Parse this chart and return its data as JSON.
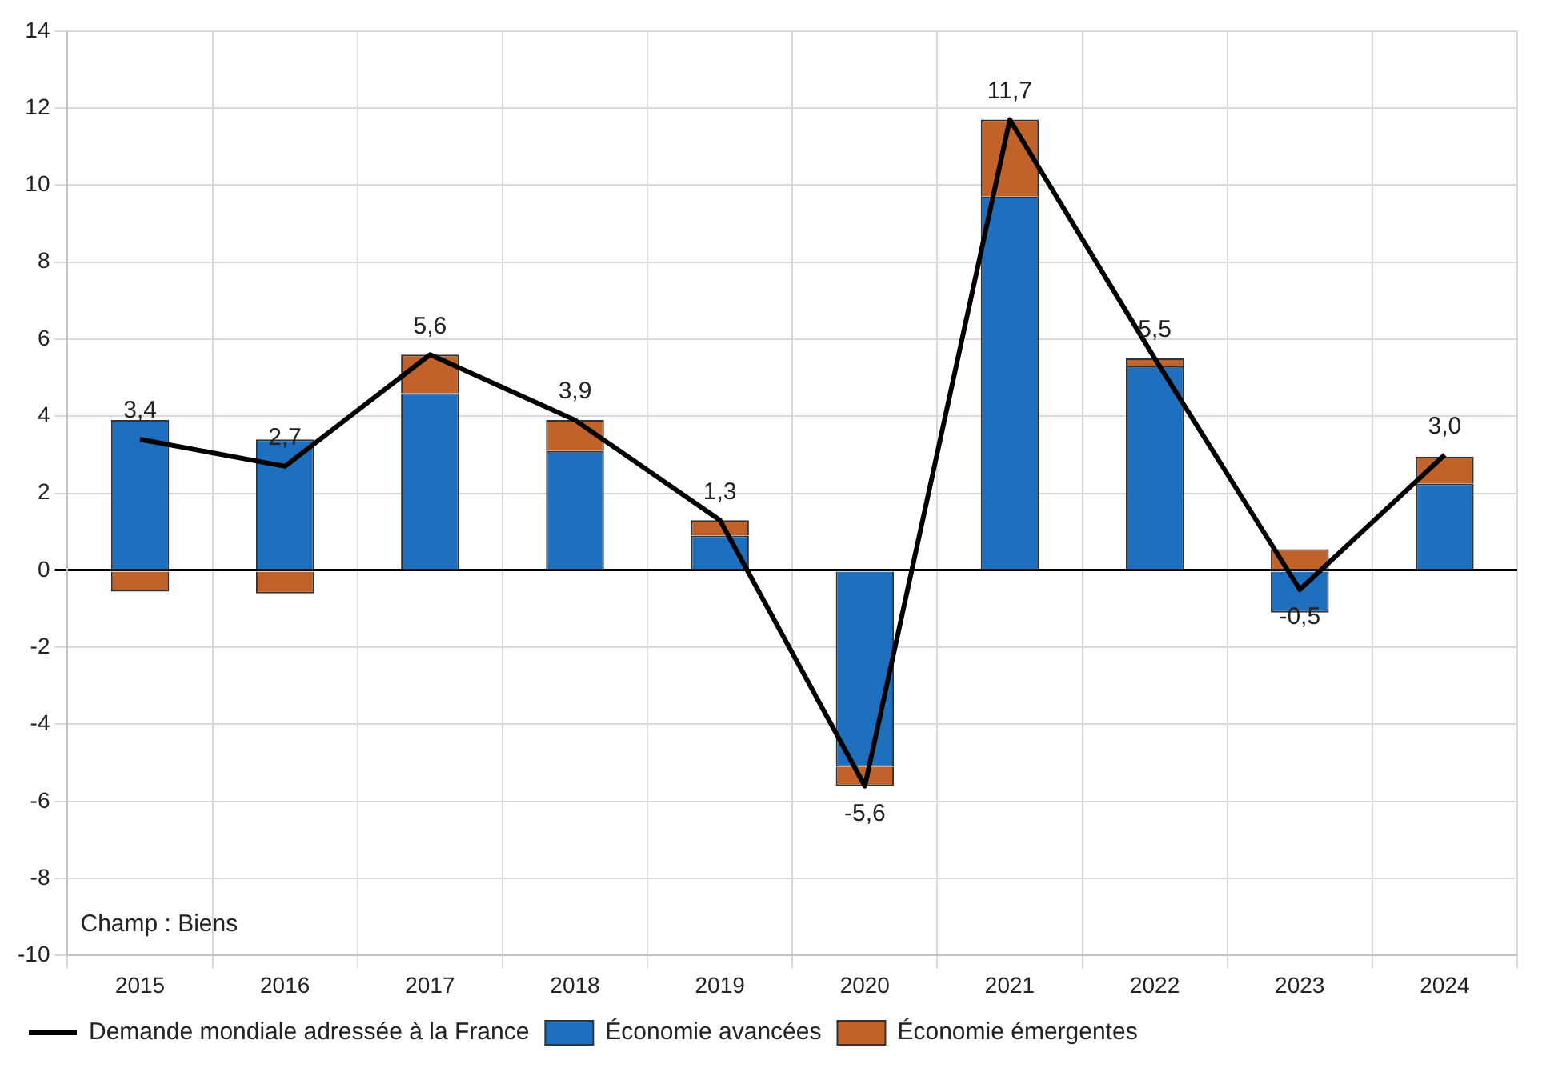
{
  "chart_data": {
    "type": "bar",
    "stacked": true,
    "categories": [
      "2015",
      "2016",
      "2017",
      "2018",
      "2019",
      "2020",
      "2021",
      "2022",
      "2023",
      "2024"
    ],
    "series": [
      {
        "name": "Économie avancées",
        "color": "#1f6fbf",
        "values": [
          3.9,
          3.4,
          4.6,
          3.1,
          0.9,
          -5.1,
          9.7,
          5.3,
          -1.1,
          2.25
        ]
      },
      {
        "name": "Économie émergentes",
        "color": "#c0622a",
        "values": [
          -0.55,
          -0.6,
          1.0,
          0.8,
          0.4,
          -0.5,
          2.0,
          0.2,
          0.55,
          0.7
        ]
      },
      {
        "name": "Demande mondiale adressée à la France",
        "type": "line",
        "color": "#000000",
        "values": [
          3.4,
          2.7,
          5.6,
          3.9,
          1.3,
          -5.6,
          11.7,
          5.5,
          -0.5,
          3.0
        ],
        "value_labels": [
          "3,4",
          "2,7",
          "5,6",
          "3,9",
          "1,3",
          "-5,6",
          "11,7",
          "5,5",
          "-0,5",
          "3,0"
        ]
      }
    ],
    "ylim": [
      -10,
      14
    ],
    "yticks": [
      -10,
      -8,
      -6,
      -4,
      -2,
      0,
      2,
      4,
      6,
      8,
      10,
      12,
      14
    ],
    "grid": true,
    "legend": "bottom",
    "marker": "none",
    "annotations": [
      "Champ : Biens"
    ]
  }
}
